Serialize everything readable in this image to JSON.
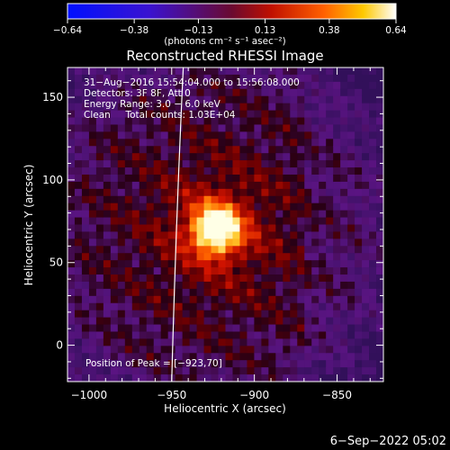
{
  "chart_data": {
    "type": "heatmap",
    "title": "Reconstructed RHESSI Image",
    "xlabel": "Heliocentric X (arcsec)",
    "ylabel": "Heliocentric Y (arcsec)",
    "xlim": [
      -1013,
      -822
    ],
    "ylim": [
      -22,
      168
    ],
    "x_ticks": [
      -1000,
      -950,
      -900,
      -850
    ],
    "x_tick_labels": [
      "−1000",
      "−950",
      "−900",
      "−850"
    ],
    "y_ticks": [
      0,
      50,
      100,
      150
    ],
    "y_tick_labels": [
      "0",
      "50",
      "100",
      "150"
    ],
    "colorbar": {
      "min": -0.64,
      "max": 0.64,
      "ticks": [
        -0.64,
        -0.38,
        -0.13,
        0.13,
        0.38,
        0.64
      ],
      "tick_labels": [
        "−0.64",
        "−0.38",
        "−0.13",
        "0.13",
        "0.38",
        "0.64"
      ],
      "unit_label": "(photons cm⁻² s⁻¹ asec⁻²)"
    },
    "peak": {
      "x": -923,
      "y": 70,
      "value": 0.64
    },
    "annotations": {
      "time_range": "31−Aug−2016 15:54:04.000 to 15:56:08.000",
      "detectors": "Detectors: 3F 8F, Att 0",
      "energy": "Energy Range: 3.0 − 6.0 keV",
      "method": "Clean     Total counts: 1.03E+04",
      "peak_position": "Position of Peak = [−923,70]"
    },
    "limb_x_at_y": [
      [
        -943,
        168
      ],
      [
        -950,
        -22
      ]
    ],
    "grid": false
  },
  "footer": {
    "timestamp": "6−Sep−2022 05:02"
  }
}
